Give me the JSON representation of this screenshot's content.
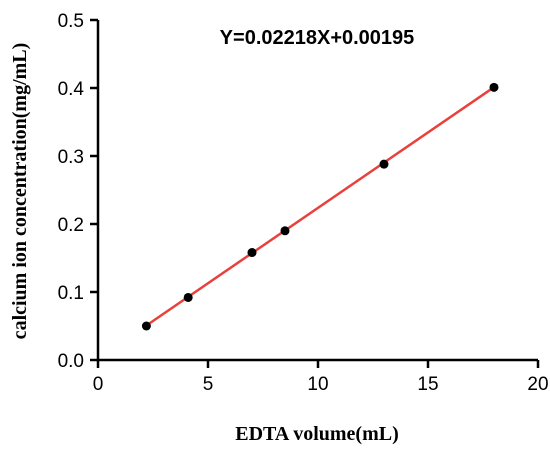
{
  "chart_data": {
    "type": "scatter",
    "title": "",
    "annotation": "Y=0.02218X+0.00195",
    "xlabel": "EDTA volume(mL)",
    "ylabel": "calcium ion concentration(mg/mL)",
    "xlim": [
      0,
      20
    ],
    "ylim": [
      0,
      0.5
    ],
    "xticks": [
      "0",
      "5",
      "10",
      "15",
      "20"
    ],
    "yticks": [
      "0.0",
      "0.1",
      "0.2",
      "0.3",
      "0.4",
      "0.5"
    ],
    "grid": false,
    "series": [
      {
        "x": [
          2.2,
          4.1,
          7.0,
          8.5,
          13.0,
          18.0
        ],
        "y": [
          0.05,
          0.092,
          0.158,
          0.19,
          0.288,
          0.401
        ],
        "point_color": "#000000"
      }
    ],
    "fit_line": {
      "slope": 0.02218,
      "intercept": 0.00195,
      "x_range": [
        2.2,
        18.0
      ],
      "color": "#e8413c"
    }
  }
}
